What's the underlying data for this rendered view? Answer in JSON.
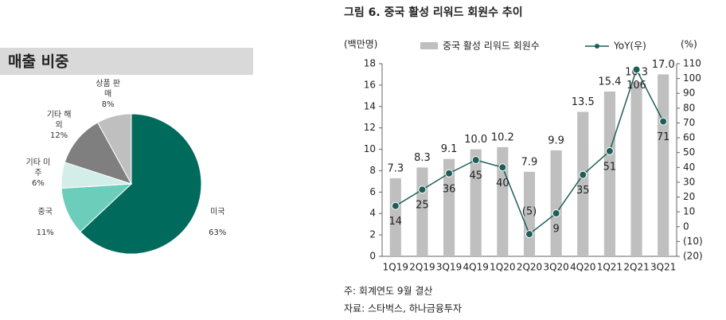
{
  "chart_data": [
    {
      "type": "pie",
      "title": "매출 비중",
      "categories": [
        "미국",
        "중국",
        "기타 미주",
        "기타 해외",
        "상품 판매"
      ],
      "values": [
        63,
        11,
        6,
        12,
        8
      ],
      "value_labels": [
        "63%",
        "11%",
        "6%",
        "12%",
        "8%"
      ],
      "colors": [
        "#006a5c",
        "#6ccdbb",
        "#d3eee9",
        "#7f7f7f",
        "#bfbfbf"
      ]
    },
    {
      "type": "bar-line",
      "title": "그림 6. 중국 활성 리워드 회원수 추이",
      "y_label": "(백만명)",
      "y2_label": "(%)",
      "categories": [
        "1Q19",
        "2Q19",
        "3Q19",
        "4Q19",
        "1Q20",
        "2Q20",
        "3Q20",
        "4Q20",
        "1Q21",
        "2Q21",
        "3Q21"
      ],
      "series": [
        {
          "name": "중국 활성 리워드 회원수",
          "type": "bar",
          "color": "#bfbfbf",
          "values": [
            7.3,
            8.3,
            9.1,
            10.0,
            10.2,
            7.9,
            9.9,
            13.5,
            15.4,
            16.3,
            17.0
          ],
          "value_labels": [
            "7.3",
            "8.3",
            "9.1",
            "10.0",
            "10.2",
            "7.9",
            "9.9",
            "13.5",
            "15.4",
            "16.3",
            "17.0"
          ]
        },
        {
          "name": "YoY(우)",
          "type": "line",
          "axis": "y2",
          "color": "#1d5e58",
          "values": [
            14,
            25,
            36,
            45,
            40,
            -5,
            9,
            35,
            51,
            106,
            71
          ],
          "value_labels": [
            "14",
            "25",
            "36",
            "45",
            "40",
            "(5)",
            "9",
            "35",
            "51",
            "106",
            "71"
          ]
        }
      ],
      "ylim": [
        0,
        18
      ],
      "yticks": [
        0,
        2,
        4,
        6,
        8,
        10,
        12,
        14,
        16,
        18
      ],
      "y2lim": [
        -20,
        110
      ],
      "y2ticks": [
        {
          "value": -20,
          "label": "(20)"
        },
        {
          "value": -10,
          "label": "(10)"
        },
        0,
        10,
        20,
        30,
        40,
        50,
        60,
        70,
        80,
        90,
        100,
        110
      ],
      "notes": [
        "주: 회계연도 9월 결산",
        "자료: 스타벅스, 하나금융투자"
      ]
    }
  ]
}
